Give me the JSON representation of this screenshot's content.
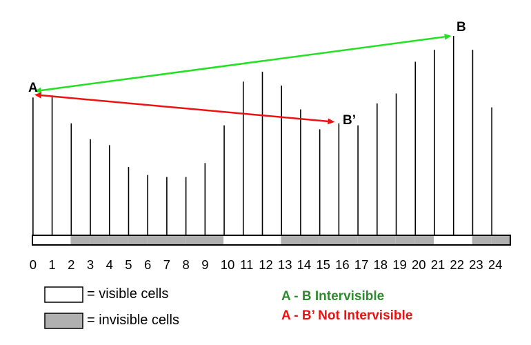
{
  "diagram": {
    "cells": [
      "0",
      "1",
      "2",
      "3",
      "4",
      "5",
      "6",
      "7",
      "8",
      "9",
      "10",
      "11",
      "12",
      "13",
      "14",
      "15",
      "16",
      "17",
      "18",
      "19",
      "20",
      "21",
      "22",
      "23",
      "24"
    ],
    "elevations": [
      0.69,
      0.7,
      0.56,
      0.48,
      0.45,
      0.34,
      0.3,
      0.29,
      0.29,
      0.36,
      0.55,
      0.77,
      0.82,
      0.75,
      0.63,
      0.53,
      0.56,
      0.55,
      0.66,
      0.71,
      0.87,
      0.93,
      1.0,
      0.93,
      0.64
    ],
    "visibility": [
      true,
      true,
      false,
      false,
      false,
      false,
      false,
      false,
      false,
      false,
      true,
      true,
      true,
      false,
      false,
      false,
      false,
      false,
      false,
      false,
      false,
      true,
      true,
      false,
      false
    ],
    "points": {
      "a": {
        "label": "A",
        "cell": 0
      },
      "b": {
        "label": "B",
        "cell": 22
      },
      "b_prime": {
        "label": "B’",
        "cell": 16
      }
    },
    "colors": {
      "visible_line": "#22e022",
      "blocked_line": "#ee1111",
      "invisible_cell": "#b0b0b0",
      "visible_cell": "#ffffff"
    }
  },
  "legend": {
    "visible_label": "= visible cells",
    "invisible_label": "= invisible cells"
  },
  "notes": {
    "ab": {
      "text": "A - B Intervisible",
      "color": "#2e8b2e"
    },
    "ab_prime": {
      "text": "A - B’ Not Intervisible",
      "color": "#ee1111"
    }
  }
}
